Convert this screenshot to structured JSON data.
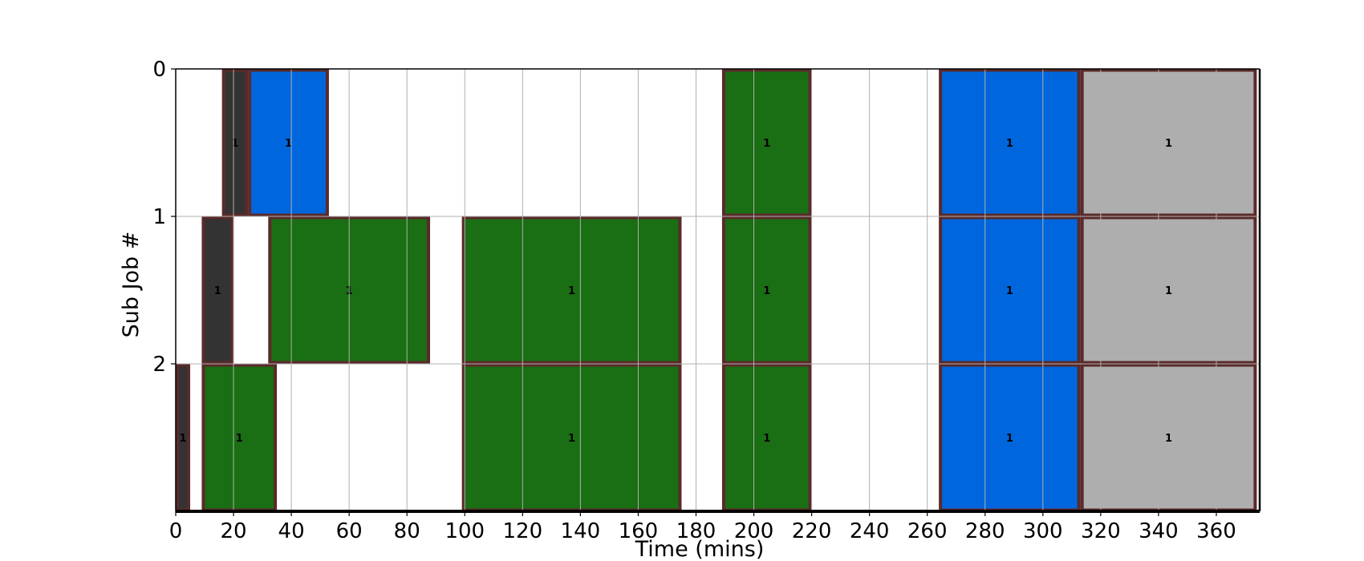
{
  "chart_data": {
    "type": "gantt",
    "xlabel": "Time (mins)",
    "ylabel": "Sub Job #",
    "xlim": [
      0,
      375
    ],
    "ylim": [
      0,
      3
    ],
    "xticks": [
      0,
      20,
      40,
      60,
      80,
      100,
      120,
      140,
      160,
      180,
      200,
      220,
      240,
      260,
      280,
      300,
      320,
      340,
      360
    ],
    "yticks": [
      0,
      1,
      2
    ],
    "grid": true,
    "edge_color": "#5a2a2a",
    "colors": {
      "dark": "#333333",
      "blue": "#0066dd",
      "green": "#1a6e14",
      "gray": "#aeaeae"
    },
    "bars": [
      {
        "row": 0,
        "start": 16,
        "end": 25,
        "color": "dark",
        "label": "1"
      },
      {
        "row": 0,
        "start": 25,
        "end": 53,
        "color": "blue",
        "label": "1"
      },
      {
        "row": 0,
        "start": 189,
        "end": 220,
        "color": "green",
        "label": "1"
      },
      {
        "row": 0,
        "start": 264,
        "end": 313,
        "color": "blue",
        "label": "1"
      },
      {
        "row": 0,
        "start": 313,
        "end": 374,
        "color": "gray",
        "label": "1"
      },
      {
        "row": 1,
        "start": 9,
        "end": 20,
        "color": "dark",
        "label": "1"
      },
      {
        "row": 1,
        "start": 32,
        "end": 88,
        "color": "green",
        "label": "1"
      },
      {
        "row": 1,
        "start": 99,
        "end": 175,
        "color": "green",
        "label": "1"
      },
      {
        "row": 1,
        "start": 189,
        "end": 220,
        "color": "green",
        "label": "1"
      },
      {
        "row": 1,
        "start": 264,
        "end": 313,
        "color": "blue",
        "label": "1"
      },
      {
        "row": 1,
        "start": 313,
        "end": 374,
        "color": "gray",
        "label": "1"
      },
      {
        "row": 2,
        "start": 0,
        "end": 5,
        "color": "dark",
        "label": "1"
      },
      {
        "row": 2,
        "start": 9,
        "end": 35,
        "color": "green",
        "label": "1"
      },
      {
        "row": 2,
        "start": 99,
        "end": 175,
        "color": "green",
        "label": "1"
      },
      {
        "row": 2,
        "start": 189,
        "end": 220,
        "color": "green",
        "label": "1"
      },
      {
        "row": 2,
        "start": 264,
        "end": 313,
        "color": "blue",
        "label": "1"
      },
      {
        "row": 2,
        "start": 313,
        "end": 374,
        "color": "gray",
        "label": "1"
      }
    ]
  }
}
